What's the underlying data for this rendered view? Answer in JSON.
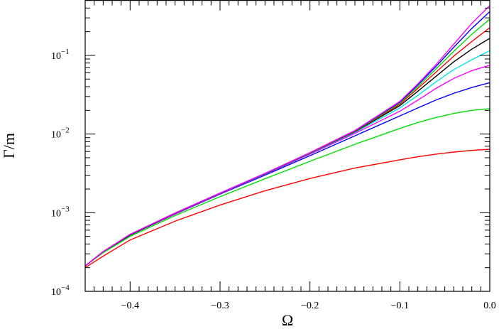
{
  "chart_data": {
    "type": "line",
    "xlabel": "Ω",
    "ylabel": "Γ/m",
    "xlim": [
      -0.45,
      0.0
    ],
    "ylim": [
      0.0001,
      0.5
    ],
    "yscale": "log",
    "grid": false,
    "legend": "none",
    "x_ticks": [
      -0.4,
      -0.3,
      -0.2,
      -0.1,
      0.0
    ],
    "x_tick_labels": [
      "−0.4",
      "−0.3",
      "−0.2",
      "−0.1",
      "0.0"
    ],
    "y_ticks": [
      {
        "mantissa": "10",
        "exponent": "−4",
        "value": 0.0001
      },
      {
        "mantissa": "10",
        "exponent": "−3",
        "value": 0.001
      },
      {
        "mantissa": "10",
        "exponent": "−2",
        "value": 0.01
      },
      {
        "mantissa": "10",
        "exponent": "−1",
        "value": 0.1
      }
    ],
    "x": [
      -0.45,
      -0.43,
      -0.4,
      -0.35,
      -0.3,
      -0.25,
      -0.2,
      -0.15,
      -0.1,
      -0.08,
      -0.06,
      -0.04,
      -0.02,
      0.0
    ],
    "series": [
      {
        "color": "#ff0000",
        "values": [
          0.0002,
          0.00028,
          0.00045,
          0.00078,
          0.00125,
          0.0019,
          0.00272,
          0.0037,
          0.0047,
          0.00515,
          0.00555,
          0.0059,
          0.0062,
          0.0064
        ]
      },
      {
        "color": "#00dd00",
        "values": [
          0.00021,
          0.00031,
          0.0005,
          0.00092,
          0.0016,
          0.0027,
          0.0045,
          0.0074,
          0.0118,
          0.014,
          0.0162,
          0.0183,
          0.02,
          0.021
        ]
      },
      {
        "color": "#0000ff",
        "values": [
          0.00021,
          0.00032,
          0.00052,
          0.00096,
          0.00172,
          0.003,
          0.0053,
          0.0095,
          0.017,
          0.0215,
          0.027,
          0.033,
          0.039,
          0.045
        ]
      },
      {
        "color": "#ff00ff",
        "values": [
          0.00021,
          0.00032,
          0.00052,
          0.00097,
          0.00174,
          0.00308,
          0.00555,
          0.0102,
          0.0195,
          0.027,
          0.038,
          0.051,
          0.064,
          0.075
        ]
      },
      {
        "color": "#00e5e5",
        "values": [
          0.00021,
          0.00032,
          0.00052,
          0.00098,
          0.00175,
          0.0031,
          0.00565,
          0.0105,
          0.0215,
          0.031,
          0.046,
          0.066,
          0.088,
          0.115
        ]
      },
      {
        "color": "#000000",
        "values": [
          0.00021,
          0.00032,
          0.00052,
          0.00098,
          0.00176,
          0.00312,
          0.0057,
          0.0107,
          0.023,
          0.035,
          0.054,
          0.083,
          0.12,
          0.165
        ]
      },
      {
        "color": "#ff0000",
        "values": [
          0.00021,
          0.00032,
          0.00053,
          0.00098,
          0.00176,
          0.00313,
          0.00574,
          0.0108,
          0.024,
          0.038,
          0.061,
          0.098,
          0.15,
          0.225
        ]
      },
      {
        "color": "#00dd00",
        "values": [
          0.00021,
          0.00032,
          0.00053,
          0.00099,
          0.00177,
          0.00314,
          0.00577,
          0.0109,
          0.0248,
          0.04,
          0.067,
          0.113,
          0.185,
          0.29
        ]
      },
      {
        "color": "#0000ff",
        "values": [
          0.00021,
          0.00032,
          0.00053,
          0.00099,
          0.00177,
          0.00315,
          0.00579,
          0.011,
          0.0255,
          0.042,
          0.072,
          0.127,
          0.22,
          0.36
        ]
      },
      {
        "color": "#ff00ff",
        "values": [
          0.00021,
          0.00032,
          0.00053,
          0.00099,
          0.00178,
          0.00316,
          0.00581,
          0.0111,
          0.026,
          0.0435,
          0.076,
          0.139,
          0.255,
          0.43
        ]
      }
    ]
  }
}
